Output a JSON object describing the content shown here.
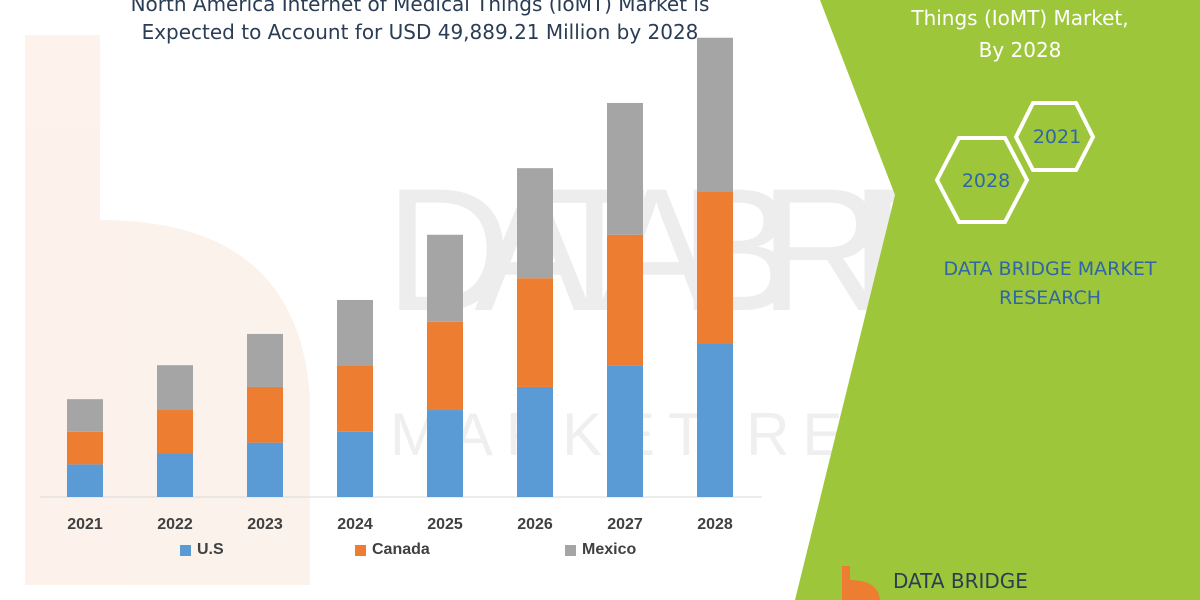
{
  "header": {
    "title_line_1": "North America Internet of Medical Things (IoMT) Market is",
    "title_line_2": "Expected to Account for USD 49,889.21 Million by 2028"
  },
  "side_panel": {
    "title_line_1": "Things (IoMT) Market,",
    "title_line_2": "By 2028",
    "hex_labels": [
      "2021",
      "2028"
    ],
    "brand_line_1": "DATA BRIDGE MARKET",
    "brand_line_2": "RESEARCH",
    "footer_logo_text": "DATA BRIDGE",
    "panel_color": "#9dc63b"
  },
  "watermark": {
    "text": "DATA BRIDGE",
    "subtext": "MARKET RESEARCH"
  },
  "chart_data": {
    "type": "bar",
    "stacked": true,
    "categories": [
      "2021",
      "2022",
      "2023",
      "2024",
      "2025",
      "2026",
      "2027",
      "2028"
    ],
    "series": [
      {
        "name": "U.S",
        "color": "#5b9bd5",
        "values": [
          2.4,
          3.2,
          4.0,
          4.8,
          6.4,
          8.1,
          9.7,
          11.3
        ]
      },
      {
        "name": "Canada",
        "color": "#ed7d31",
        "values": [
          2.4,
          3.2,
          4.1,
          4.9,
          6.5,
          8.0,
          9.6,
          11.2
        ]
      },
      {
        "name": "Mexico",
        "color": "#a5a5a5",
        "values": [
          2.4,
          3.3,
          3.9,
          4.8,
          6.4,
          8.1,
          9.7,
          11.3
        ]
      }
    ],
    "ylim": [
      0,
      34
    ],
    "grid": false,
    "legend": "bottom"
  }
}
